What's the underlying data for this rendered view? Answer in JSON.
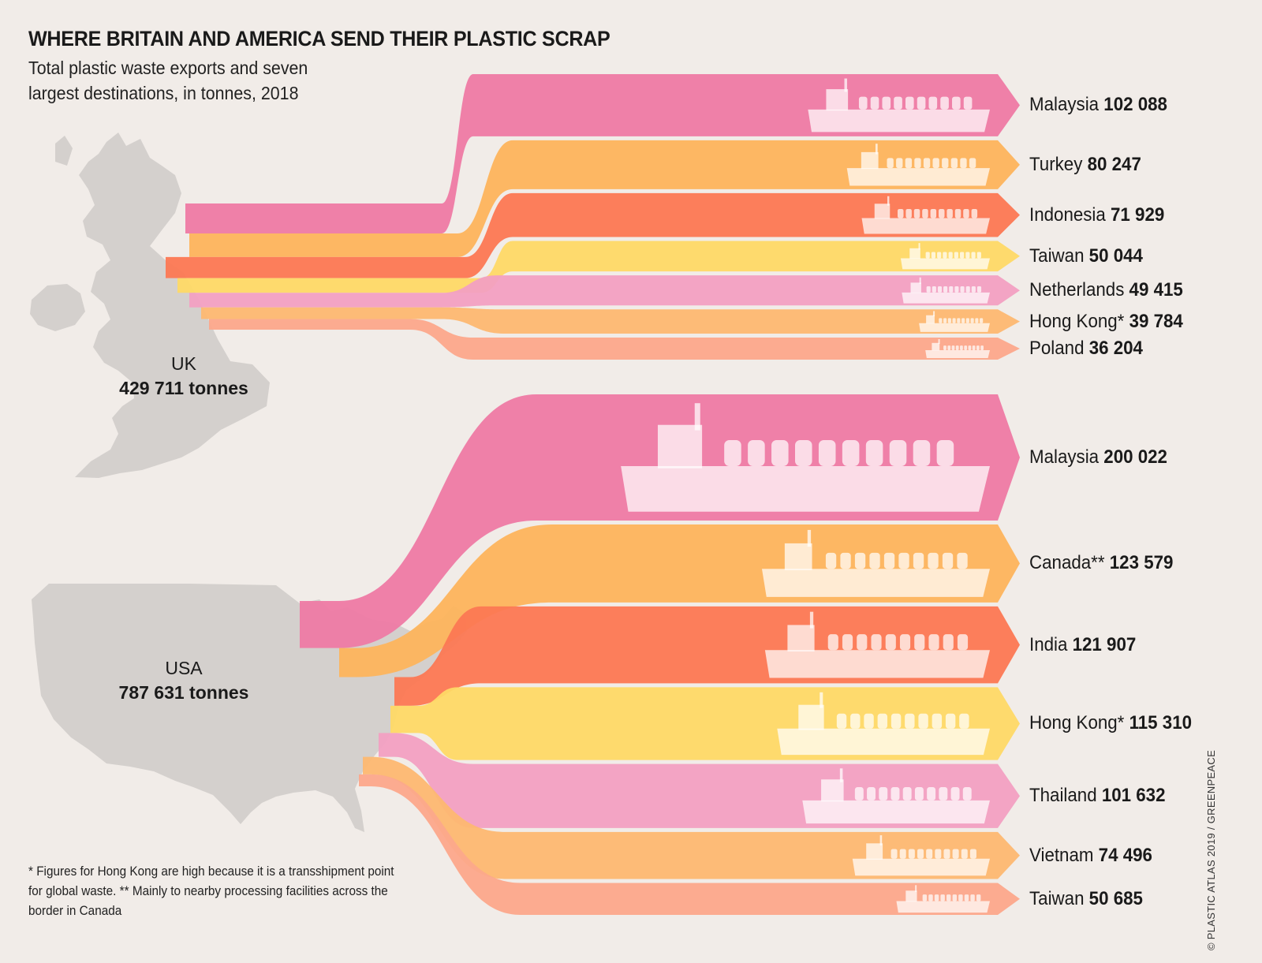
{
  "title": "WHERE BRITAIN AND AMERICA SEND THEIR PLASTIC SCRAP",
  "subtitle": "Total plastic waste exports and seven largest destinations, in tonnes, 2018",
  "footnote": "* Figures for Hong Kong are high because it is a transshipment point for global waste.  ** Mainly to nearby processing facilities across the border in Canada",
  "credit": "© PLASTIC ATLAS 2019 / GREENPEACE",
  "colors": {
    "pink": "#ee7aa4",
    "orange": "#fdb45c",
    "red_orange": "#fc7853",
    "yellow": "#fed966",
    "light_pink": "#f2a0c2",
    "light_orange": "#fdb871",
    "salmon": "#fca88b",
    "map_gray": "#d4d0cd",
    "background": "#f1ece8"
  },
  "chart_data": {
    "type": "sankey",
    "units": "tonnes",
    "year": 2018,
    "origins": [
      {
        "name": "UK",
        "total_label": "429 711 tonnes",
        "total": 429711,
        "map_icon": "uk-map-icon",
        "destinations": [
          {
            "name": "Malaysia",
            "value": 102088,
            "value_label": "102 088",
            "color": "#ee7aa4"
          },
          {
            "name": "Turkey",
            "value": 80247,
            "value_label": "80 247",
            "color": "#fdb45c"
          },
          {
            "name": "Indonesia",
            "value": 71929,
            "value_label": "71 929",
            "color": "#fc7853"
          },
          {
            "name": "Taiwan",
            "value": 50044,
            "value_label": "50 044",
            "color": "#fed966"
          },
          {
            "name": "Netherlands",
            "value": 49415,
            "value_label": "49 415",
            "color": "#f2a0c2"
          },
          {
            "name": "Hong Kong*",
            "value": 39784,
            "value_label": "39 784",
            "color": "#fdb871"
          },
          {
            "name": "Poland",
            "value": 36204,
            "value_label": "36 204",
            "color": "#fca88b"
          }
        ]
      },
      {
        "name": "USA",
        "total_label": "787 631 tonnes",
        "total": 787631,
        "map_icon": "usa-map-icon",
        "destinations": [
          {
            "name": "Malaysia",
            "value": 200022,
            "value_label": "200 022",
            "color": "#ee7aa4"
          },
          {
            "name": "Canada**",
            "value": 123579,
            "value_label": "123 579",
            "color": "#fdb45c"
          },
          {
            "name": "India",
            "value": 121907,
            "value_label": "121 907",
            "color": "#fc7853"
          },
          {
            "name": "Hong Kong*",
            "value": 115310,
            "value_label": "115 310",
            "color": "#fed966"
          },
          {
            "name": "Thailand",
            "value": 101632,
            "value_label": "101 632",
            "color": "#f2a0c2"
          },
          {
            "name": "Vietnam",
            "value": 74496,
            "value_label": "74 496",
            "color": "#fdb871"
          },
          {
            "name": "Taiwan",
            "value": 50685,
            "value_label": "50 685",
            "color": "#fca88b"
          }
        ]
      }
    ],
    "mark_icon": "container-ship-icon"
  }
}
